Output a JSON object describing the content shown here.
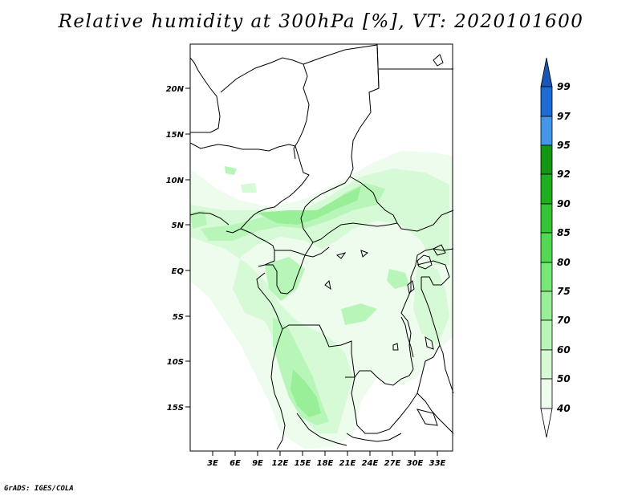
{
  "title": "Relative humidity at 300hPa [%], VT: 2020101600",
  "credit": "GrADS: IGES/COLA",
  "map": {
    "lat_labels": [
      "20N",
      "15N",
      "10N",
      "5N",
      "EQ",
      "5S",
      "10S",
      "15S"
    ],
    "lon_labels": [
      "3E",
      "6E",
      "9E",
      "12E",
      "15E",
      "18E",
      "21E",
      "24E",
      "27E",
      "30E",
      "33E"
    ],
    "lon_range_deg": [
      0,
      35
    ],
    "lat_range_deg": [
      -20,
      25
    ]
  },
  "colorbar": {
    "levels": [
      "99",
      "97",
      "95",
      "92",
      "90",
      "85",
      "80",
      "75",
      "70",
      "60",
      "50",
      "40"
    ],
    "segments": [
      {
        "range": "97-99",
        "color": "#1e6bd4"
      },
      {
        "range": "95-97",
        "color": "#4596e8"
      },
      {
        "range": "92-95",
        "color": "#149614"
      },
      {
        "range": "90-92",
        "color": "#1fae1f"
      },
      {
        "range": "85-90",
        "color": "#35c435"
      },
      {
        "range": "80-85",
        "color": "#52d852"
      },
      {
        "range": "75-80",
        "color": "#77e777"
      },
      {
        "range": "70-75",
        "color": "#98ef98"
      },
      {
        "range": "60-70",
        "color": "#b8f5b8"
      },
      {
        "range": "50-60",
        "color": "#d6fad6"
      },
      {
        "range": "40-50",
        "color": "#eefcee"
      }
    ],
    "top_arrow_color": "#1a56b8",
    "bottom_arrow_color": "#ffffff"
  }
}
